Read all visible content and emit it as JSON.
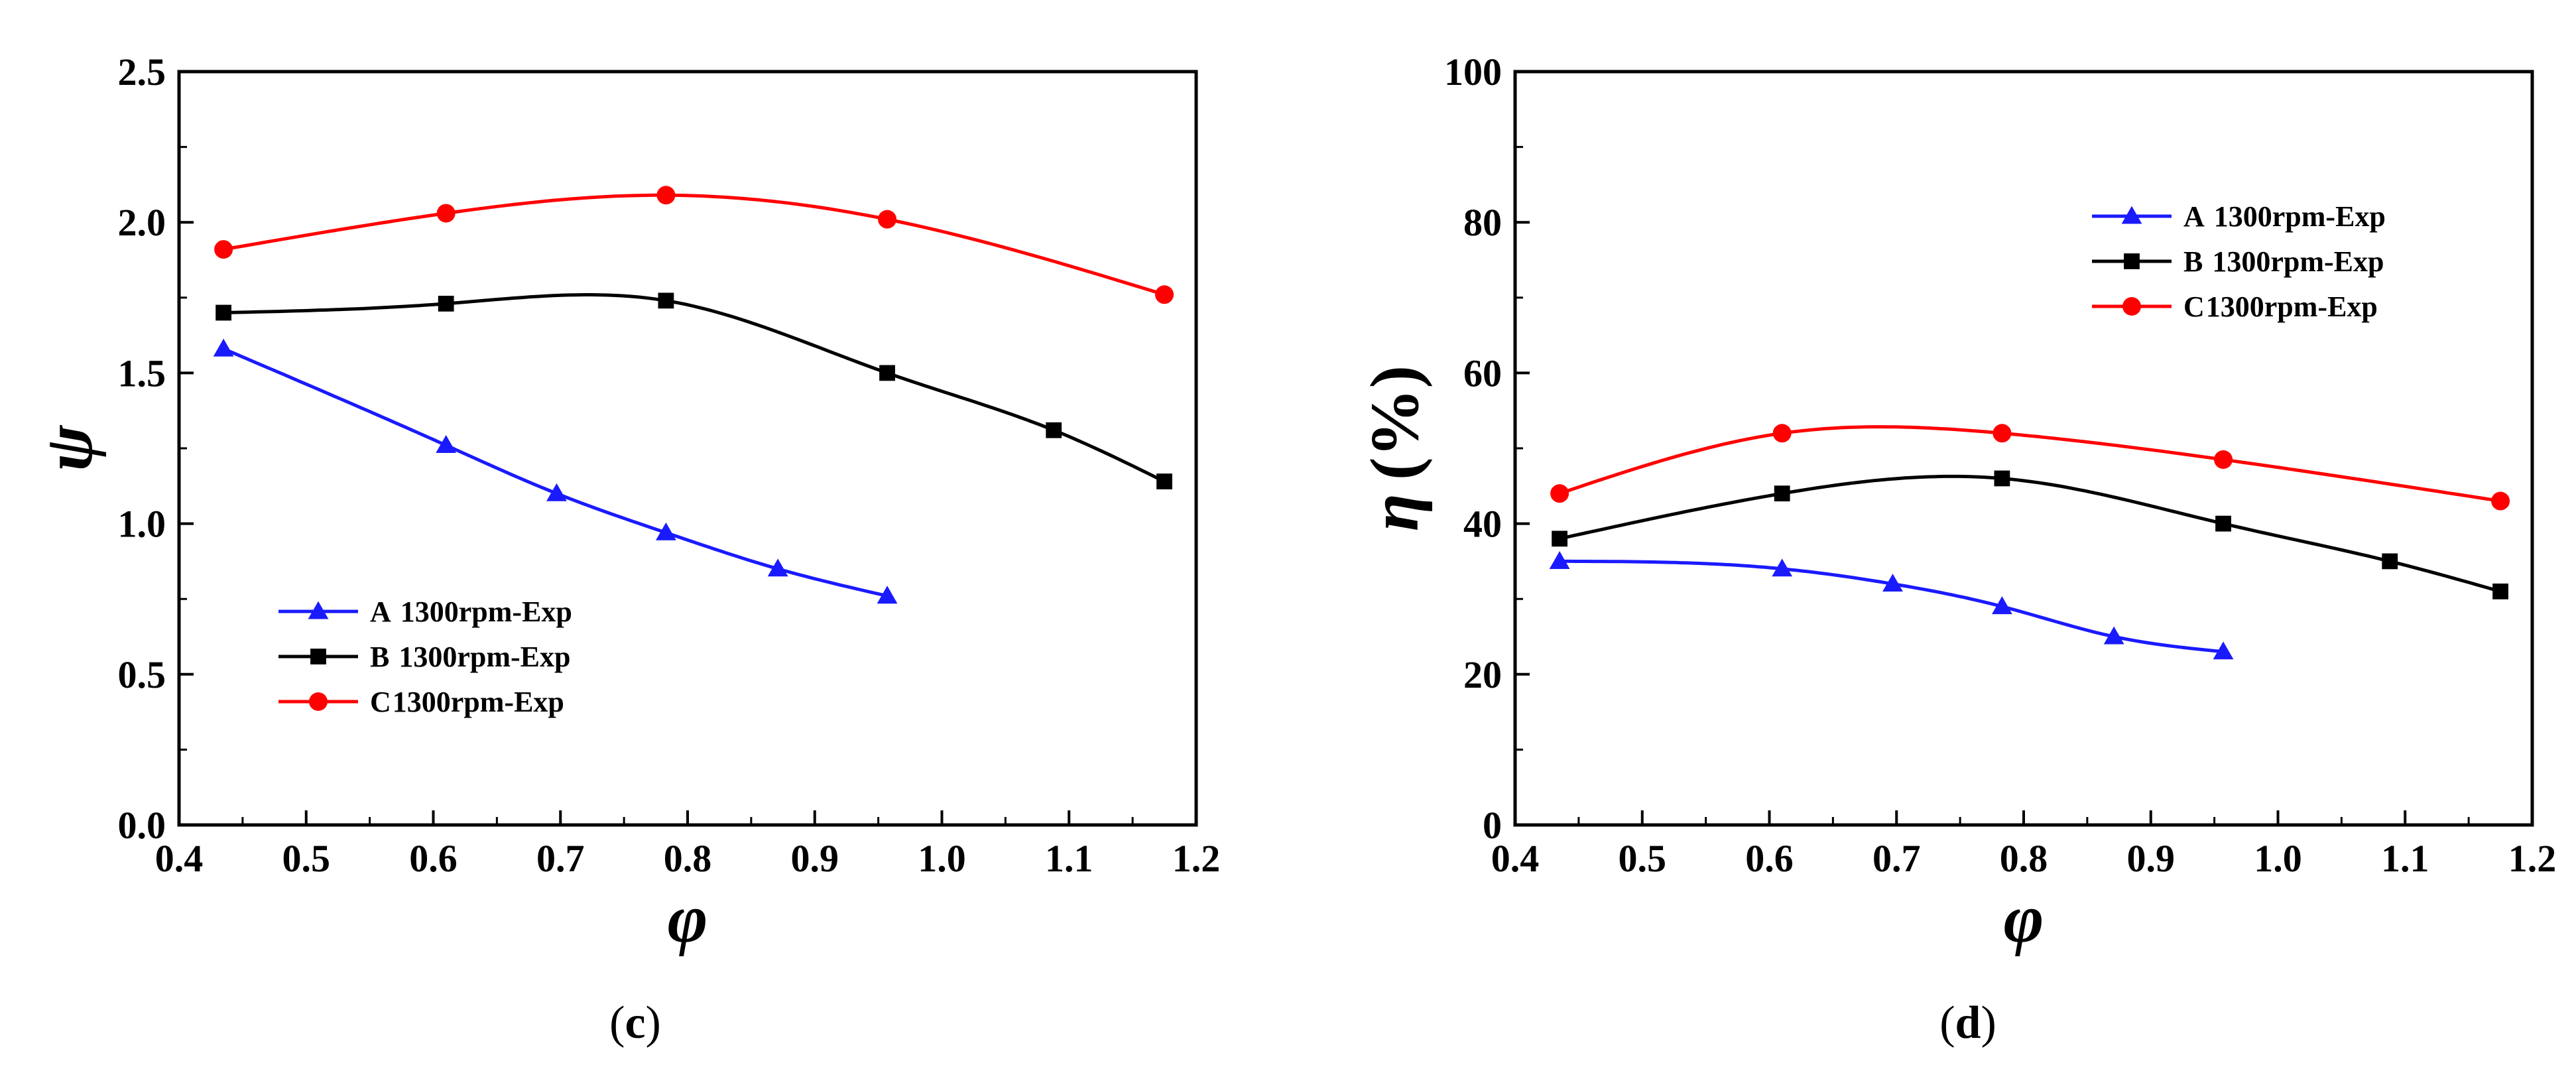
{
  "colors": {
    "A": "#1a1aff",
    "B": "#000000",
    "C": "#ff0000"
  },
  "chart_data": [
    {
      "type": "line",
      "panel": "c",
      "caption_open": "(",
      "caption_letter": "c",
      "caption_close": ")",
      "xlabel": "φ",
      "ylabel": "ψ",
      "xlim": [
        0.4,
        1.2
      ],
      "ylim": [
        0.0,
        2.5
      ],
      "xticks": [
        "0.4",
        "0.5",
        "0.6",
        "0.7",
        "0.8",
        "0.9",
        "1.0",
        "1.1",
        "1.2"
      ],
      "yticks": [
        "0.0",
        "0.5",
        "1.0",
        "1.5",
        "2.0",
        "2.5"
      ],
      "legend_position": "bottom-left",
      "series": [
        {
          "key": "A",
          "letter": "A",
          "name": "1300rpm-Exp",
          "marker": "triangle",
          "x": [
            0.435,
            0.61,
            0.697,
            0.783,
            0.871,
            0.957
          ],
          "y": [
            1.58,
            1.26,
            1.1,
            0.97,
            0.85,
            0.76
          ]
        },
        {
          "key": "B",
          "letter": "B",
          "name": "1300rpm-Exp",
          "marker": "square",
          "x": [
            0.435,
            0.61,
            0.783,
            0.957,
            1.088,
            1.175
          ],
          "y": [
            1.7,
            1.73,
            1.74,
            1.5,
            1.31,
            1.14
          ]
        },
        {
          "key": "C",
          "letter": "C",
          "name": "1300rpm-Exp",
          "marker": "circle",
          "x": [
            0.435,
            0.61,
            0.783,
            0.957,
            1.175
          ],
          "y": [
            1.91,
            2.03,
            2.09,
            2.01,
            1.76
          ]
        }
      ]
    },
    {
      "type": "line",
      "panel": "d",
      "caption_open": "(",
      "caption_letter": "d",
      "caption_close": ")",
      "xlabel": "φ",
      "ylabel_symbol": "η",
      "ylabel_unit": "(%)",
      "xlim": [
        0.4,
        1.2
      ],
      "ylim": [
        0,
        100
      ],
      "xticks": [
        "0.4",
        "0.5",
        "0.6",
        "0.7",
        "0.8",
        "0.9",
        "1.0",
        "1.1",
        "1.2"
      ],
      "yticks": [
        "0",
        "20",
        "40",
        "60",
        "80",
        "100"
      ],
      "legend_position": "top-right",
      "series": [
        {
          "key": "A",
          "letter": "A",
          "name": "1300rpm-Exp",
          "marker": "triangle",
          "x": [
            0.435,
            0.61,
            0.697,
            0.783,
            0.871,
            0.957
          ],
          "y": [
            35,
            34,
            32,
            29,
            25,
            23
          ]
        },
        {
          "key": "B",
          "letter": "B",
          "name": "1300rpm-Exp",
          "marker": "square",
          "x": [
            0.435,
            0.61,
            0.783,
            0.957,
            1.088,
            1.175
          ],
          "y": [
            38,
            44,
            46,
            40,
            35,
            31
          ]
        },
        {
          "key": "C",
          "letter": "C",
          "name": "1300rpm-Exp",
          "marker": "circle",
          "x": [
            0.435,
            0.61,
            0.783,
            0.957,
            1.175
          ],
          "y": [
            44,
            52,
            52,
            48.5,
            43
          ]
        }
      ]
    }
  ]
}
